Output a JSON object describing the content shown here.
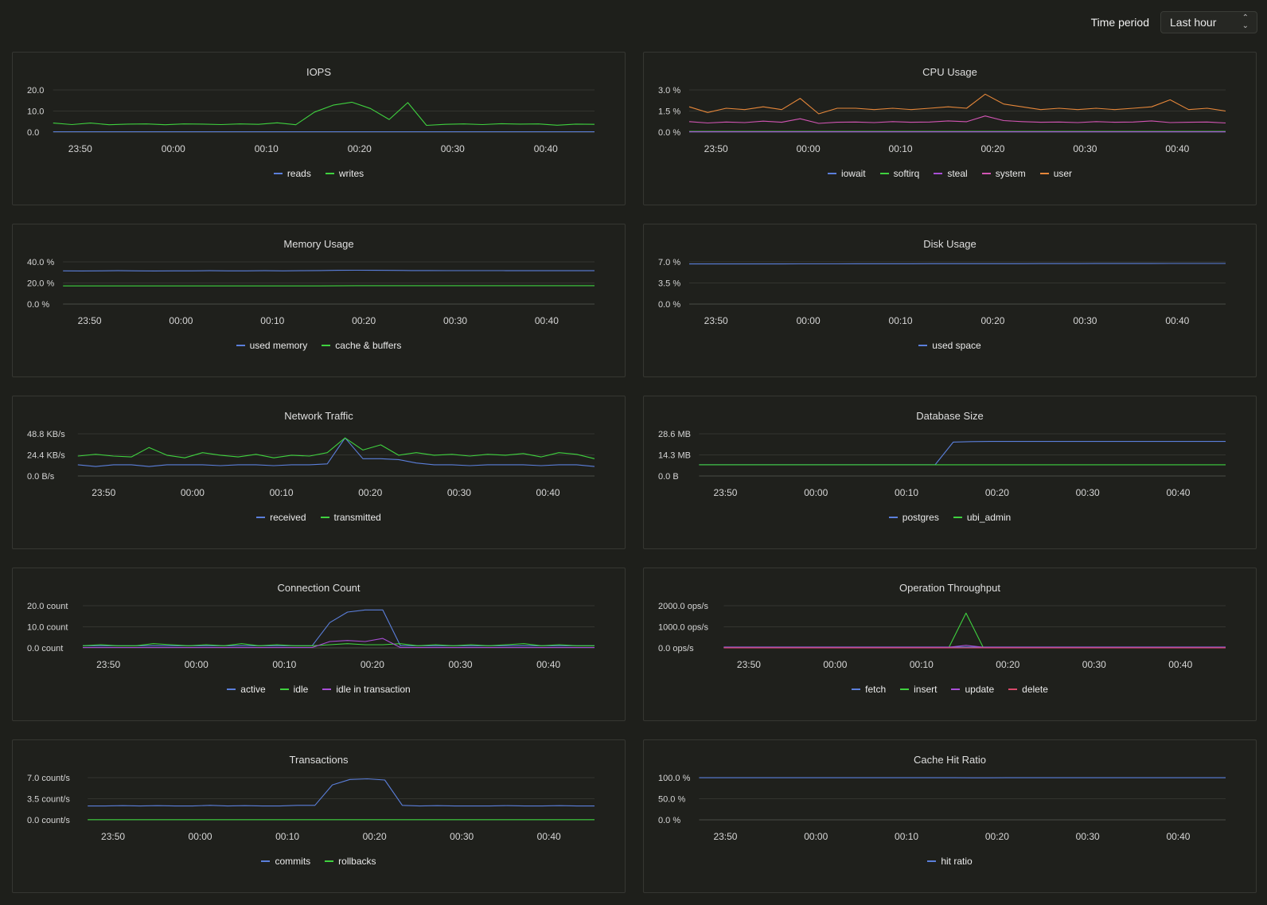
{
  "header": {
    "time_period_label": "Time period",
    "time_period_value": "Last hour"
  },
  "x_tick_labels": [
    "23:50",
    "00:00",
    "00:10",
    "00:20",
    "00:30",
    "00:40"
  ],
  "colors": {
    "blue": "#5b7fdb",
    "green": "#3fd13f",
    "purple": "#a84fd6",
    "pink": "#d255b4",
    "orange": "#e6873a",
    "red": "#d84a6b",
    "grid": "#33342f",
    "axis": "#4a4b46"
  },
  "panels": [
    {
      "title": "IOPS",
      "y_labels": [
        "20.0",
        "10.0",
        "0.0"
      ],
      "ylim": [
        0,
        20
      ],
      "legend": [
        {
          "name": "reads",
          "color": "#5b7fdb"
        },
        {
          "name": "writes",
          "color": "#3fd13f"
        }
      ],
      "series": [
        {
          "color": "#5b7fdb",
          "values": [
            0.2,
            0.2,
            0.2,
            0.2,
            0.2,
            0.2,
            0.2,
            0.2,
            0.2,
            0.2,
            0.2,
            0.2,
            0.2,
            0.2,
            0.2,
            0.2,
            0.2,
            0.2,
            0.2,
            0.2,
            0.2,
            0.2,
            0.2,
            0.2,
            0.2,
            0.2,
            0.2,
            0.2,
            0.2,
            0.2
          ]
        },
        {
          "color": "#3fd13f",
          "values": [
            4.3,
            3.6,
            4.3,
            3.5,
            3.8,
            3.9,
            3.5,
            3.9,
            3.8,
            3.6,
            3.9,
            3.7,
            4.4,
            3.5,
            9.5,
            12.8,
            14.2,
            11.2,
            6.0,
            14.0,
            3.2,
            3.7,
            3.9,
            3.6,
            4.0,
            3.8,
            3.9,
            3.3,
            3.8,
            3.7
          ]
        }
      ]
    },
    {
      "title": "CPU Usage",
      "y_labels": [
        "3.0 %",
        "1.5 %",
        "0.0 %"
      ],
      "ylim": [
        0,
        3
      ],
      "legend": [
        {
          "name": "iowait",
          "color": "#5b7fdb"
        },
        {
          "name": "softirq",
          "color": "#3fd13f"
        },
        {
          "name": "steal",
          "color": "#a84fd6"
        },
        {
          "name": "system",
          "color": "#d255b4"
        },
        {
          "name": "user",
          "color": "#e6873a"
        }
      ],
      "series": [
        {
          "color": "#5b7fdb",
          "values": [
            0.02,
            0.02,
            0.02,
            0.02,
            0.02,
            0.02,
            0.02,
            0.02,
            0.02,
            0.02,
            0.02,
            0.02,
            0.02,
            0.02,
            0.02,
            0.02,
            0.02,
            0.02,
            0.02,
            0.02,
            0.02,
            0.02,
            0.02,
            0.02,
            0.02,
            0.02,
            0.02,
            0.02,
            0.02,
            0.02
          ]
        },
        {
          "color": "#3fd13f",
          "values": [
            0.05,
            0.05,
            0.05,
            0.05,
            0.05,
            0.05,
            0.05,
            0.05,
            0.05,
            0.05,
            0.05,
            0.05,
            0.05,
            0.05,
            0.05,
            0.05,
            0.05,
            0.05,
            0.05,
            0.05,
            0.05,
            0.05,
            0.05,
            0.05,
            0.05,
            0.05,
            0.05,
            0.05,
            0.05,
            0.05
          ]
        },
        {
          "color": "#a84fd6",
          "values": [
            0.03,
            0.03,
            0.03,
            0.03,
            0.03,
            0.03,
            0.03,
            0.03,
            0.03,
            0.03,
            0.03,
            0.03,
            0.03,
            0.03,
            0.03,
            0.03,
            0.03,
            0.03,
            0.03,
            0.03,
            0.03,
            0.03,
            0.03,
            0.03,
            0.03,
            0.03,
            0.03,
            0.03,
            0.03,
            0.03
          ]
        },
        {
          "color": "#d255b4",
          "values": [
            0.75,
            0.65,
            0.72,
            0.68,
            0.78,
            0.7,
            0.95,
            0.62,
            0.7,
            0.72,
            0.68,
            0.75,
            0.7,
            0.72,
            0.8,
            0.74,
            1.15,
            0.82,
            0.75,
            0.7,
            0.72,
            0.68,
            0.75,
            0.7,
            0.72,
            0.8,
            0.68,
            0.7,
            0.72,
            0.65
          ]
        },
        {
          "color": "#e6873a",
          "values": [
            1.8,
            1.4,
            1.7,
            1.6,
            1.8,
            1.6,
            2.4,
            1.3,
            1.7,
            1.7,
            1.6,
            1.7,
            1.6,
            1.7,
            1.8,
            1.7,
            2.7,
            2.0,
            1.8,
            1.6,
            1.7,
            1.6,
            1.7,
            1.6,
            1.7,
            1.8,
            2.3,
            1.6,
            1.7,
            1.5
          ]
        }
      ]
    },
    {
      "title": "Memory Usage",
      "y_labels": [
        "40.0 %",
        "20.0 %",
        "0.0 %"
      ],
      "ylim": [
        0,
        40
      ],
      "legend": [
        {
          "name": "used memory",
          "color": "#5b7fdb"
        },
        {
          "name": "cache & buffers",
          "color": "#3fd13f"
        }
      ],
      "series": [
        {
          "color": "#5b7fdb",
          "values": [
            31.5,
            31.4,
            31.5,
            31.6,
            31.5,
            31.4,
            31.5,
            31.5,
            31.6,
            31.5,
            31.5,
            31.6,
            31.5,
            31.6,
            31.8,
            32.0,
            32.1,
            32.0,
            31.9,
            31.8,
            31.8,
            31.7,
            31.7,
            31.7,
            31.7,
            31.6,
            31.6,
            31.6,
            31.6,
            31.6
          ]
        },
        {
          "color": "#3fd13f",
          "values": [
            17.2,
            17.2,
            17.2,
            17.2,
            17.2,
            17.2,
            17.2,
            17.2,
            17.2,
            17.2,
            17.2,
            17.2,
            17.2,
            17.2,
            17.2,
            17.3,
            17.4,
            17.4,
            17.4,
            17.4,
            17.4,
            17.4,
            17.4,
            17.4,
            17.4,
            17.4,
            17.4,
            17.4,
            17.4,
            17.4
          ]
        }
      ]
    },
    {
      "title": "Disk Usage",
      "y_labels": [
        "7.0 %",
        "3.5 %",
        "0.0 %"
      ],
      "ylim": [
        0,
        7
      ],
      "legend": [
        {
          "name": "used space",
          "color": "#5b7fdb"
        }
      ],
      "series": [
        {
          "color": "#5b7fdb",
          "values": [
            6.65,
            6.65,
            6.65,
            6.66,
            6.66,
            6.66,
            6.67,
            6.67,
            6.67,
            6.68,
            6.68,
            6.68,
            6.68,
            6.69,
            6.69,
            6.69,
            6.7,
            6.7,
            6.7,
            6.71,
            6.71,
            6.71,
            6.72,
            6.72,
            6.72,
            6.72,
            6.73,
            6.73,
            6.73,
            6.73
          ]
        }
      ]
    },
    {
      "title": "Network Traffic",
      "y_labels": [
        "48.8 KB/s",
        "24.4 KB/s",
        "0.0 B/s"
      ],
      "ylim": [
        0,
        48.8
      ],
      "legend": [
        {
          "name": "received",
          "color": "#5b7fdb"
        },
        {
          "name": "transmitted",
          "color": "#3fd13f"
        }
      ],
      "series": [
        {
          "color": "#5b7fdb",
          "values": [
            13,
            11,
            13,
            13,
            11,
            13,
            13,
            13,
            12,
            13,
            13,
            12,
            13,
            13,
            14,
            44,
            20,
            20,
            19,
            15,
            13,
            13,
            12,
            13,
            13,
            13,
            12,
            13,
            13,
            11
          ]
        },
        {
          "color": "#3fd13f",
          "values": [
            23,
            25,
            23,
            22,
            33,
            24,
            21,
            27,
            24,
            22,
            25,
            21,
            24,
            23,
            27,
            44,
            30,
            36,
            24,
            27,
            24,
            25,
            23,
            25,
            24,
            26,
            22,
            27,
            25,
            20
          ]
        }
      ]
    },
    {
      "title": "Database Size",
      "y_labels": [
        "28.6 MB",
        "14.3 MB",
        "0.0 B"
      ],
      "ylim": [
        0,
        28.6
      ],
      "legend": [
        {
          "name": "postgres",
          "color": "#5b7fdb"
        },
        {
          "name": "ubi_admin",
          "color": "#3fd13f"
        }
      ],
      "series": [
        {
          "color": "#5b7fdb",
          "values": [
            7.6,
            7.6,
            7.6,
            7.6,
            7.6,
            7.6,
            7.6,
            7.6,
            7.6,
            7.6,
            7.6,
            7.6,
            7.6,
            7.6,
            23.0,
            23.3,
            23.4,
            23.4,
            23.4,
            23.4,
            23.4,
            23.4,
            23.4,
            23.4,
            23.4,
            23.4,
            23.4,
            23.4,
            23.4,
            23.4
          ]
        },
        {
          "color": "#3fd13f",
          "values": [
            7.6,
            7.6,
            7.6,
            7.6,
            7.6,
            7.6,
            7.6,
            7.6,
            7.6,
            7.6,
            7.6,
            7.6,
            7.6,
            7.6,
            7.6,
            7.6,
            7.6,
            7.6,
            7.6,
            7.6,
            7.6,
            7.6,
            7.6,
            7.6,
            7.6,
            7.6,
            7.6,
            7.6,
            7.6,
            7.6
          ]
        }
      ]
    },
    {
      "title": "Connection Count",
      "y_labels": [
        "20.0 count",
        "10.0 count",
        "0.0 count"
      ],
      "ylim": [
        0,
        20
      ],
      "legend": [
        {
          "name": "active",
          "color": "#5b7fdb"
        },
        {
          "name": "idle",
          "color": "#3fd13f"
        },
        {
          "name": "idle in transaction",
          "color": "#a84fd6"
        }
      ],
      "series": [
        {
          "color": "#5b7fdb",
          "values": [
            1,
            1,
            1,
            1,
            1,
            1,
            1,
            1,
            1,
            1,
            1,
            1,
            1,
            1,
            12,
            17,
            18,
            18,
            1,
            1,
            1,
            1,
            1,
            1,
            1,
            1,
            1,
            1,
            1,
            1
          ]
        },
        {
          "color": "#3fd13f",
          "values": [
            1,
            1.5,
            1,
            1,
            2,
            1.5,
            1,
            1.5,
            1,
            2,
            1,
            1.5,
            1,
            1,
            1.5,
            2,
            1.5,
            1.5,
            2,
            1,
            1.5,
            1,
            1.5,
            1,
            1.5,
            2,
            1,
            1.5,
            1,
            1
          ]
        },
        {
          "color": "#a84fd6",
          "values": [
            0.2,
            0.2,
            0.2,
            0.2,
            0.2,
            0.2,
            0.2,
            0.2,
            0.2,
            0.2,
            0.2,
            0.2,
            0.2,
            0.2,
            3,
            3.5,
            3,
            4.5,
            0.2,
            0.2,
            0.2,
            0.2,
            0.2,
            0.2,
            0.2,
            0.2,
            0.2,
            0.2,
            0.2,
            0.2
          ]
        }
      ]
    },
    {
      "title": "Operation Throughput",
      "y_labels": [
        "2000.0 ops/s",
        "1000.0 ops/s",
        "0.0 ops/s"
      ],
      "ylim": [
        0,
        2000
      ],
      "legend": [
        {
          "name": "fetch",
          "color": "#5b7fdb"
        },
        {
          "name": "insert",
          "color": "#3fd13f"
        },
        {
          "name": "update",
          "color": "#a84fd6"
        },
        {
          "name": "delete",
          "color": "#d84a6b"
        }
      ],
      "series": [
        {
          "color": "#5b7fdb",
          "values": [
            40,
            40,
            40,
            40,
            40,
            40,
            40,
            40,
            40,
            40,
            40,
            40,
            40,
            40,
            40,
            40,
            40,
            40,
            40,
            40,
            40,
            40,
            40,
            40,
            40,
            40,
            40,
            40,
            40,
            40
          ]
        },
        {
          "color": "#3fd13f",
          "values": [
            10,
            10,
            10,
            10,
            10,
            10,
            10,
            10,
            10,
            10,
            10,
            10,
            10,
            10,
            1650,
            10,
            10,
            10,
            10,
            10,
            10,
            10,
            10,
            10,
            10,
            10,
            10,
            10,
            10,
            10
          ]
        },
        {
          "color": "#a84fd6",
          "values": [
            30,
            30,
            30,
            30,
            30,
            30,
            30,
            30,
            30,
            30,
            30,
            30,
            30,
            30,
            120,
            30,
            30,
            30,
            30,
            30,
            30,
            30,
            30,
            30,
            30,
            30,
            30,
            30,
            30,
            30
          ]
        },
        {
          "color": "#d84a6b",
          "values": [
            5,
            5,
            5,
            5,
            5,
            5,
            5,
            5,
            5,
            5,
            5,
            5,
            5,
            5,
            5,
            5,
            5,
            5,
            5,
            5,
            5,
            5,
            5,
            5,
            5,
            5,
            5,
            5,
            5,
            5
          ]
        }
      ]
    },
    {
      "title": "Transactions",
      "y_labels": [
        "7.0 count/s",
        "3.5 count/s",
        "0.0 count/s"
      ],
      "ylim": [
        0,
        7
      ],
      "legend": [
        {
          "name": "commits",
          "color": "#5b7fdb"
        },
        {
          "name": "rollbacks",
          "color": "#3fd13f"
        }
      ],
      "series": [
        {
          "color": "#5b7fdb",
          "values": [
            2.3,
            2.3,
            2.35,
            2.3,
            2.35,
            2.3,
            2.3,
            2.4,
            2.3,
            2.35,
            2.3,
            2.3,
            2.4,
            2.4,
            5.8,
            6.7,
            6.8,
            6.6,
            2.4,
            2.3,
            2.35,
            2.3,
            2.3,
            2.3,
            2.35,
            2.3,
            2.3,
            2.35,
            2.3,
            2.3
          ]
        },
        {
          "color": "#3fd13f",
          "values": [
            0.02,
            0.02,
            0.02,
            0.02,
            0.02,
            0.02,
            0.02,
            0.02,
            0.02,
            0.02,
            0.02,
            0.02,
            0.02,
            0.02,
            0.02,
            0.02,
            0.02,
            0.02,
            0.02,
            0.02,
            0.02,
            0.02,
            0.02,
            0.02,
            0.02,
            0.02,
            0.02,
            0.02,
            0.02,
            0.02
          ]
        }
      ]
    },
    {
      "title": "Cache Hit Ratio",
      "y_labels": [
        "100.0 %",
        "50.0 %",
        "0.0 %"
      ],
      "ylim": [
        0,
        100
      ],
      "legend": [
        {
          "name": "hit ratio",
          "color": "#5b7fdb"
        }
      ],
      "series": [
        {
          "color": "#5b7fdb",
          "values": [
            99.8,
            99.8,
            99.8,
            99.8,
            99.8,
            99.8,
            99.8,
            99.8,
            99.8,
            99.8,
            99.8,
            99.8,
            99.8,
            99.8,
            99.8,
            99.6,
            99.7,
            99.8,
            99.8,
            99.8,
            99.8,
            99.8,
            99.8,
            99.8,
            99.8,
            99.8,
            99.8,
            99.8,
            99.8,
            99.8
          ]
        }
      ]
    }
  ]
}
